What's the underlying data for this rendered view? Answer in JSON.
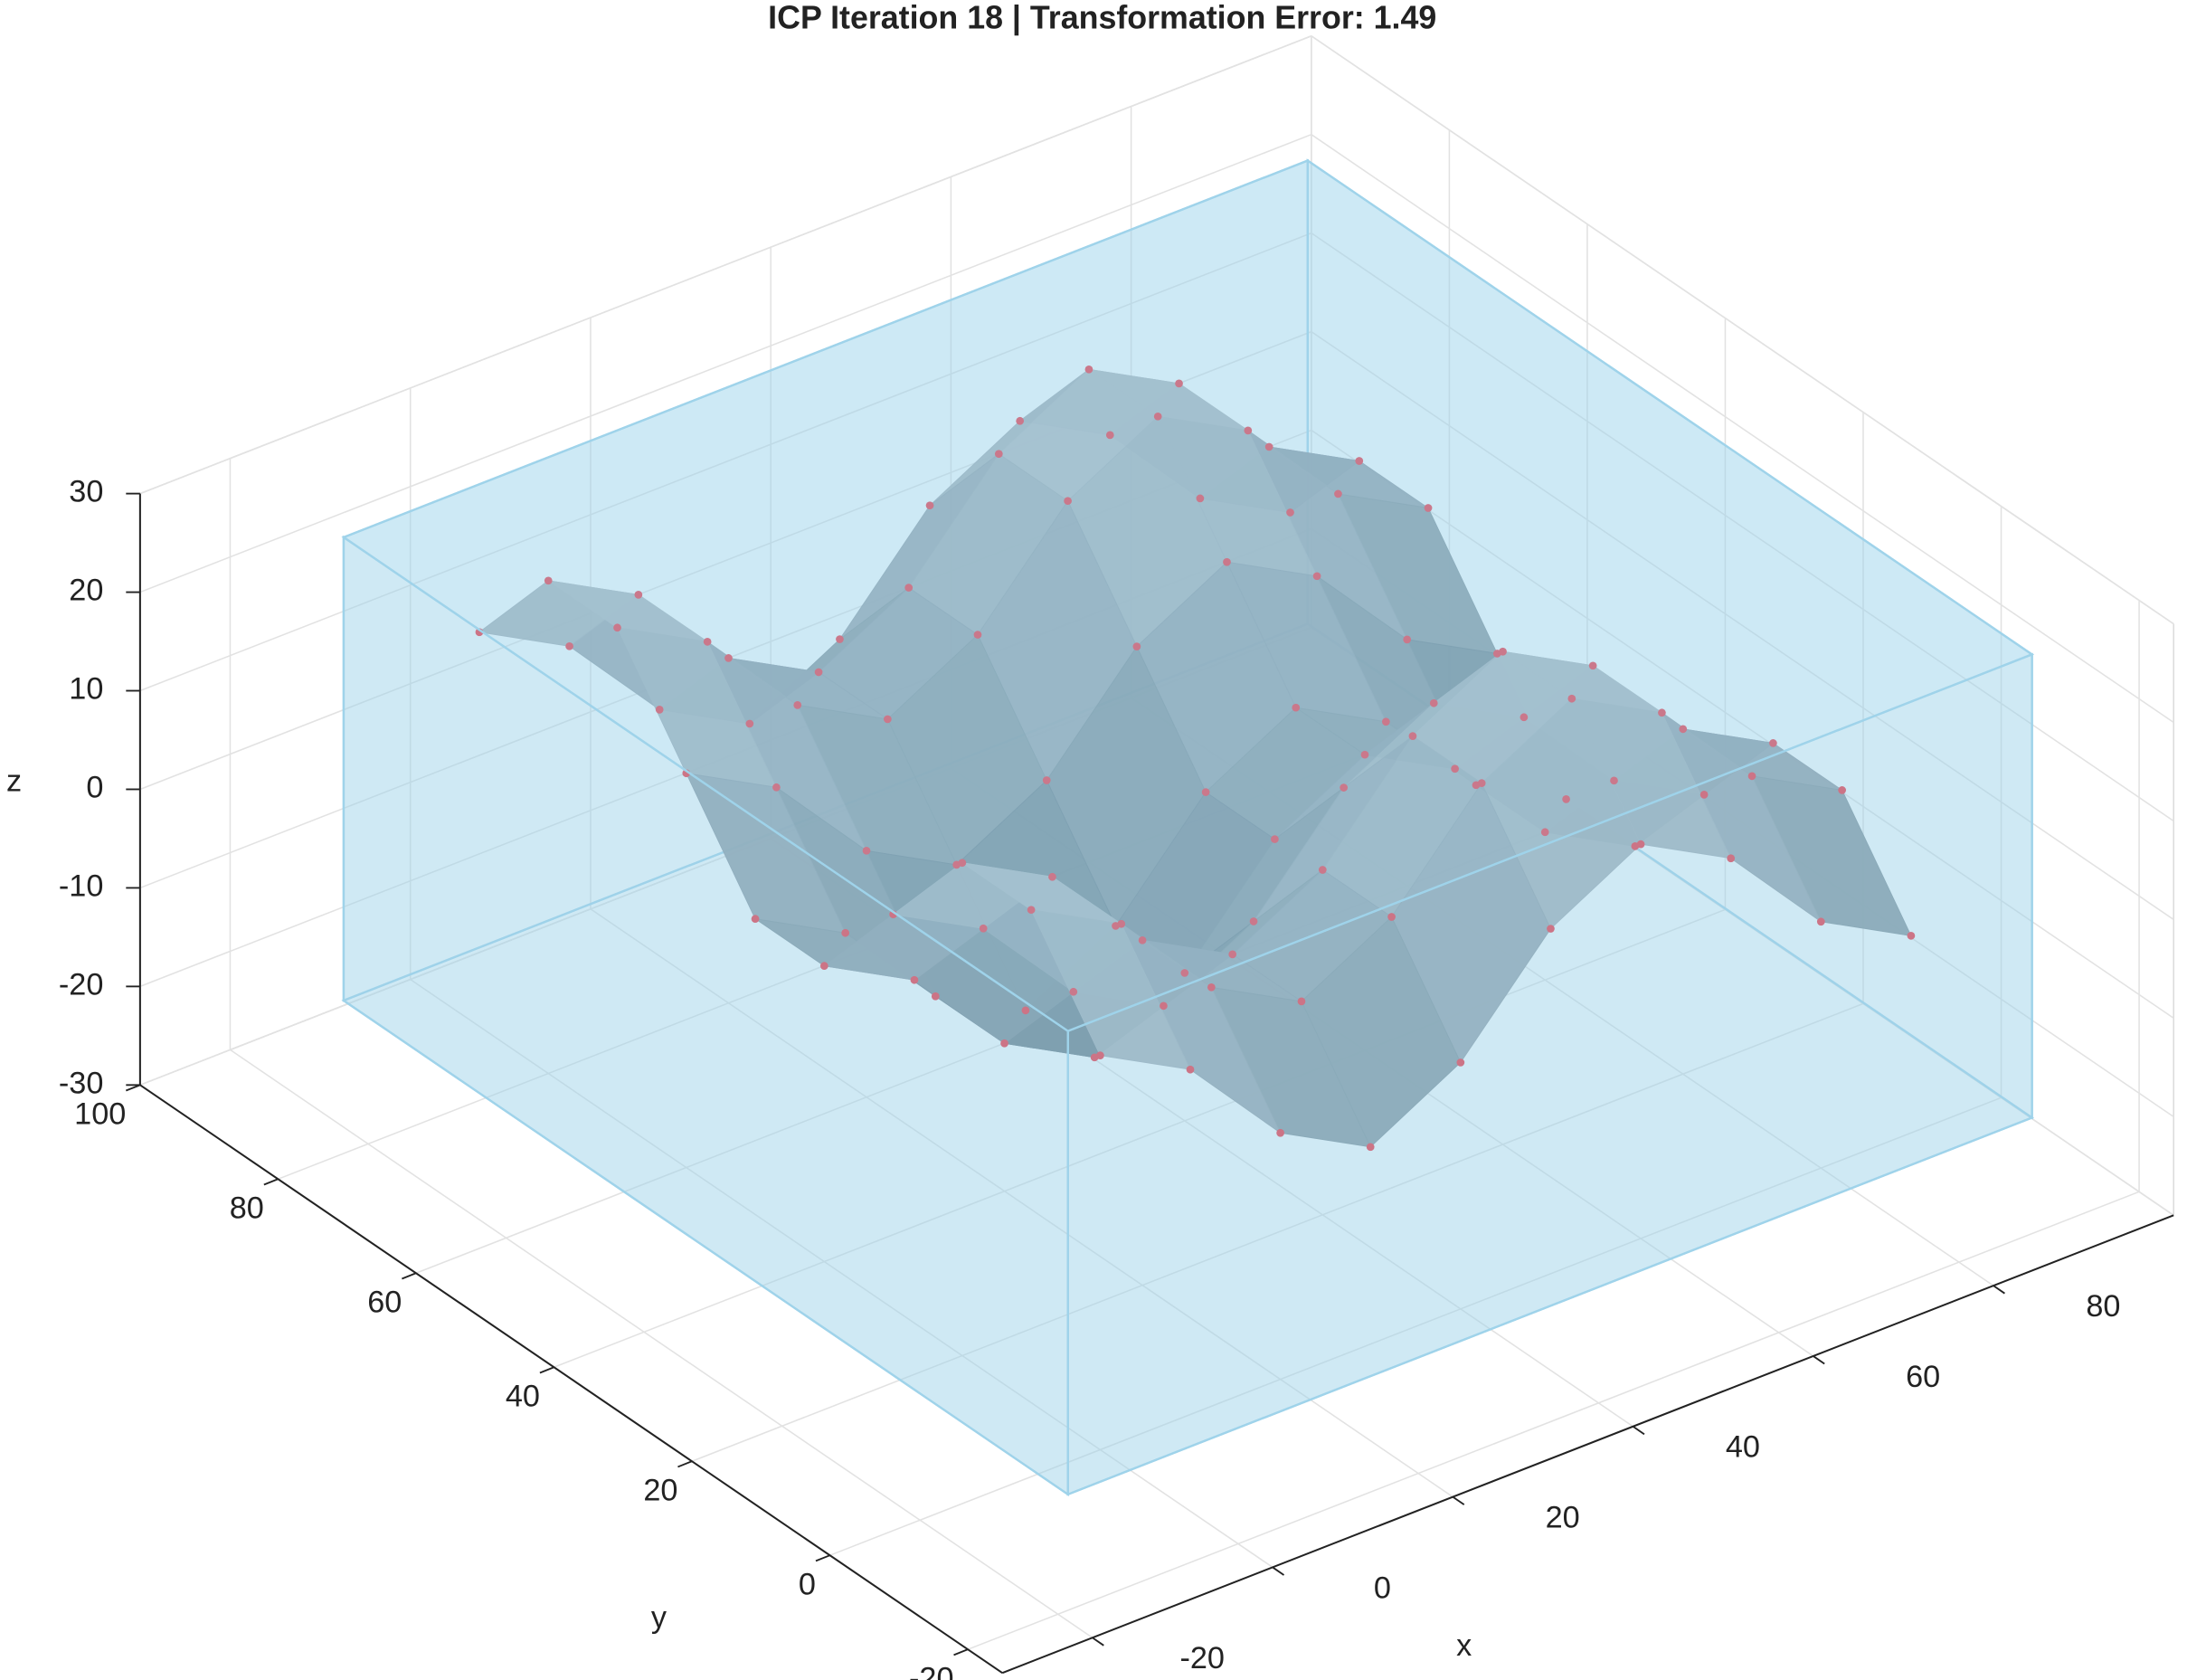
{
  "chart_data": {
    "type": "surface",
    "title": "ICP Iteration 18 | Transformation Error: 1.49",
    "xlabel": "x",
    "ylabel": "y",
    "zlabel": "z",
    "xlim": [
      -30,
      100
    ],
    "ylim": [
      -25,
      100
    ],
    "zlim": [
      -30,
      30
    ],
    "xticks": [
      -20,
      0,
      20,
      40,
      60,
      80
    ],
    "yticks": [
      -20,
      0,
      20,
      40,
      60,
      80,
      100
    ],
    "zticks": [
      -30,
      -20,
      -10,
      0,
      10,
      20,
      30
    ],
    "grid": true,
    "x": [
      0,
      10,
      20,
      30,
      40,
      50,
      60,
      70,
      80,
      90
    ],
    "y": [
      0,
      10,
      20,
      30,
      40,
      50,
      60,
      70,
      80,
      90
    ],
    "z": [
      [
        10,
        5,
        -5,
        -10,
        -5,
        5,
        10,
        5,
        -5,
        -10
      ],
      [
        20,
        15,
        5,
        0,
        5,
        15,
        20,
        15,
        5,
        0
      ],
      [
        20,
        15,
        5,
        0,
        5,
        15,
        20,
        15,
        5,
        0
      ],
      [
        10,
        5,
        -5,
        -10,
        -5,
        5,
        10,
        5,
        -5,
        -10
      ],
      [
        0,
        -5,
        -15,
        -20,
        -15,
        -5,
        0,
        -5,
        -15,
        -20
      ],
      [
        0,
        -5,
        -15,
        -20,
        -15,
        -5,
        0,
        -5,
        -15,
        -20
      ],
      [
        10,
        5,
        -5,
        -10,
        -5,
        5,
        10,
        5,
        -5,
        -10
      ],
      [
        20,
        15,
        5,
        0,
        5,
        15,
        20,
        15,
        5,
        0
      ],
      [
        20,
        15,
        5,
        0,
        5,
        15,
        20,
        15,
        5,
        0
      ],
      [
        10,
        5,
        -5,
        -10,
        -5,
        5,
        10,
        5,
        -5,
        -10
      ]
    ],
    "surface_colors": {
      "low": "#5b7a8b",
      "high": "#b9ccd6"
    },
    "points_color": "#d95a6b",
    "box": {
      "xlim": [
        -12,
        95
      ],
      "ylim": [
        -11,
        94
      ],
      "zlim": [
        -25,
        22
      ],
      "color": "#9fd3ea"
    }
  }
}
